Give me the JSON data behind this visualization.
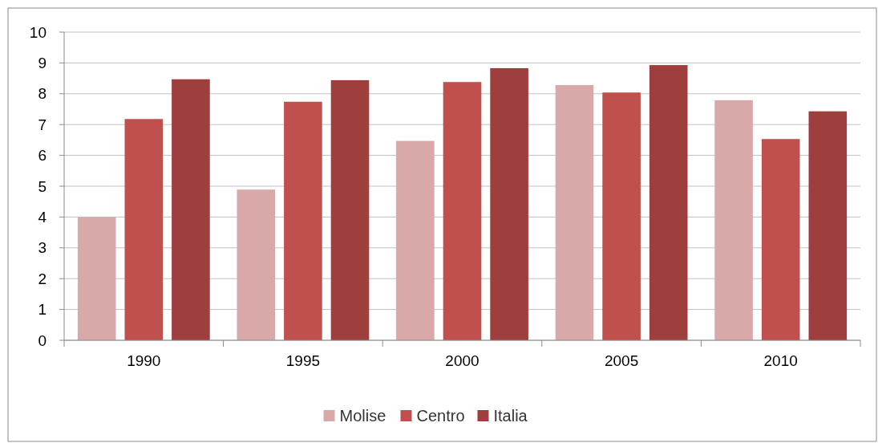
{
  "chart_data": {
    "type": "bar",
    "categories": [
      "1990",
      "1995",
      "2000",
      "2005",
      "2010"
    ],
    "series": [
      {
        "name": "Molise",
        "color": "#d9a9a9",
        "values": [
          4.0,
          4.89,
          6.47,
          8.28,
          7.79
        ]
      },
      {
        "name": "Centro",
        "color": "#c0504d",
        "values": [
          7.18,
          7.74,
          8.38,
          8.04,
          6.53
        ]
      },
      {
        "name": "Italia",
        "color": "#9e3f3d",
        "values": [
          8.47,
          8.44,
          8.83,
          8.93,
          7.43
        ]
      }
    ],
    "ylim": [
      0,
      10
    ],
    "yticks": [
      0,
      1,
      2,
      3,
      4,
      5,
      6,
      7,
      8,
      9,
      10
    ],
    "grid": "y",
    "legend": "bottom"
  }
}
